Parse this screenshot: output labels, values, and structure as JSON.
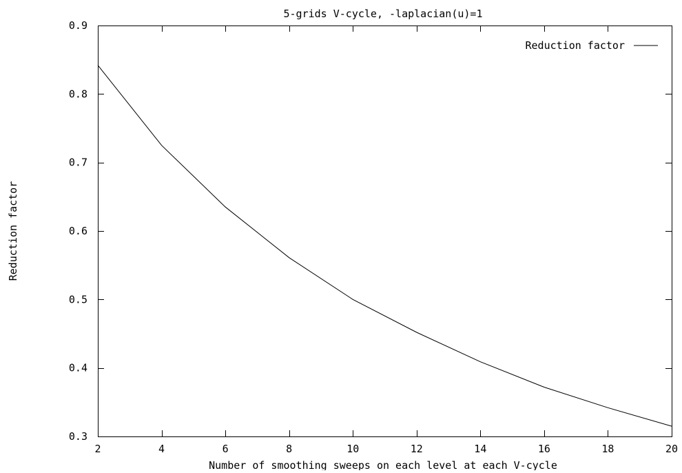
{
  "chart_data": {
    "type": "line",
    "title": "5-grids V-cycle, -laplacian(u)=1",
    "xlabel": "Number of smoothing sweeps on each level at each V-cycle",
    "ylabel": "Reduction factor",
    "xlim": [
      2,
      20
    ],
    "ylim": [
      0.3,
      0.9
    ],
    "xticks": [
      2,
      4,
      6,
      8,
      10,
      12,
      14,
      16,
      18,
      20
    ],
    "xtick_labels": [
      "2",
      "4",
      "6",
      "8",
      "10",
      "12",
      "14",
      "16",
      "18",
      "20"
    ],
    "yticks": [
      0.3,
      0.4,
      0.5,
      0.6,
      0.7,
      0.8,
      0.9
    ],
    "ytick_labels": [
      "0.3",
      "0.4",
      "0.5",
      "0.6",
      "0.7",
      "0.8",
      "0.9"
    ],
    "grid": false,
    "legend_position": "top-right",
    "series": [
      {
        "name": "Reduction factor",
        "color": "#000000",
        "x": [
          2,
          4,
          6,
          8,
          10,
          12,
          14,
          16,
          18,
          20
        ],
        "y": [
          0.842,
          0.725,
          0.635,
          0.561,
          0.5,
          0.452,
          0.409,
          0.372,
          0.342,
          0.315
        ]
      }
    ]
  }
}
